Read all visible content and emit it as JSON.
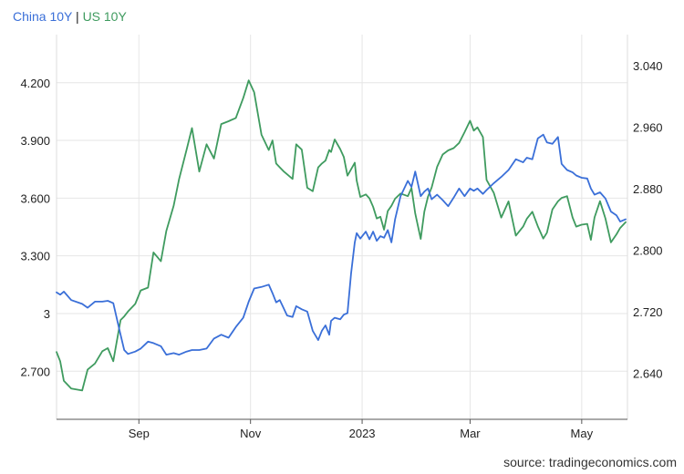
{
  "legend": {
    "china": "China 10Y",
    "sep": "|",
    "us": "US 10Y"
  },
  "source": "source: tradingeconomics.com",
  "colors": {
    "china": "#3a6fd8",
    "us": "#3f9b5f",
    "grid": "#e6e6e6",
    "axis": "#555555"
  },
  "chart_data": {
    "type": "line",
    "title": "",
    "xlabel": "",
    "ylabel": "",
    "grid": true,
    "legend_position": "top-left",
    "x_ticks": [
      "Sep",
      "Nov",
      "2023",
      "Mar",
      "May"
    ],
    "x_tick_dates": [
      "2022-09-01",
      "2022-11-01",
      "2023-01-01",
      "2023-03-01",
      "2023-05-01"
    ],
    "x_range": [
      "2022-07-18",
      "2023-05-26"
    ],
    "y_left": {
      "range": [
        2.45,
        4.45
      ],
      "ticks": [
        "2.700",
        "3",
        "3.300",
        "3.600",
        "3.900",
        "4.200"
      ],
      "tick_values": [
        2.7,
        3.0,
        3.3,
        3.6,
        3.9,
        4.2
      ]
    },
    "y_right": {
      "range": [
        2.58,
        3.08
      ],
      "ticks": [
        "2.640",
        "2.720",
        "2.800",
        "2.880",
        "2.960",
        "3.040"
      ],
      "tick_values": [
        2.64,
        2.72,
        2.8,
        2.88,
        2.96,
        3.04
      ]
    },
    "series": [
      {
        "name": "China 10Y",
        "axis": "right",
        "values": [
          [
            "2022-07-18",
            2.745
          ],
          [
            "2022-07-20",
            2.742
          ],
          [
            "2022-07-22",
            2.746
          ],
          [
            "2022-07-26",
            2.735
          ],
          [
            "2022-08-01",
            2.73
          ],
          [
            "2022-08-04",
            2.725
          ],
          [
            "2022-08-08",
            2.733
          ],
          [
            "2022-08-12",
            2.733
          ],
          [
            "2022-08-15",
            2.734
          ],
          [
            "2022-08-18",
            2.731
          ],
          [
            "2022-08-22",
            2.69
          ],
          [
            "2022-08-24",
            2.67
          ],
          [
            "2022-08-26",
            2.665
          ],
          [
            "2022-08-30",
            2.668
          ],
          [
            "2022-09-02",
            2.672
          ],
          [
            "2022-09-06",
            2.681
          ],
          [
            "2022-09-09",
            2.679
          ],
          [
            "2022-09-13",
            2.675
          ],
          [
            "2022-09-16",
            2.664
          ],
          [
            "2022-09-20",
            2.666
          ],
          [
            "2022-09-23",
            2.664
          ],
          [
            "2022-09-27",
            2.668
          ],
          [
            "2022-09-30",
            2.67
          ],
          [
            "2022-10-04",
            2.67
          ],
          [
            "2022-10-08",
            2.672
          ],
          [
            "2022-10-12",
            2.685
          ],
          [
            "2022-10-16",
            2.69
          ],
          [
            "2022-10-20",
            2.686
          ],
          [
            "2022-10-24",
            2.7
          ],
          [
            "2022-10-28",
            2.712
          ],
          [
            "2022-10-31",
            2.733
          ],
          [
            "2022-11-03",
            2.75
          ],
          [
            "2022-11-07",
            2.752
          ],
          [
            "2022-11-11",
            2.755
          ],
          [
            "2022-11-13",
            2.744
          ],
          [
            "2022-11-15",
            2.732
          ],
          [
            "2022-11-17",
            2.735
          ],
          [
            "2022-11-19",
            2.725
          ],
          [
            "2022-11-21",
            2.715
          ],
          [
            "2022-11-24",
            2.713
          ],
          [
            "2022-11-26",
            2.727
          ],
          [
            "2022-11-29",
            2.723
          ],
          [
            "2022-12-02",
            2.72
          ],
          [
            "2022-12-05",
            2.695
          ],
          [
            "2022-12-08",
            2.683
          ],
          [
            "2022-12-10",
            2.695
          ],
          [
            "2022-12-12",
            2.702
          ],
          [
            "2022-12-14",
            2.69
          ],
          [
            "2022-12-15",
            2.708
          ],
          [
            "2022-12-17",
            2.712
          ],
          [
            "2022-12-20",
            2.71
          ],
          [
            "2022-12-22",
            2.716
          ],
          [
            "2022-12-24",
            2.718
          ],
          [
            "2022-12-26",
            2.77
          ],
          [
            "2022-12-28",
            2.81
          ],
          [
            "2022-12-29",
            2.822
          ],
          [
            "2022-12-31",
            2.815
          ],
          [
            "2023-01-03",
            2.824
          ],
          [
            "2023-01-05",
            2.814
          ],
          [
            "2023-01-07",
            2.824
          ],
          [
            "2023-01-09",
            2.812
          ],
          [
            "2023-01-11",
            2.818
          ],
          [
            "2023-01-13",
            2.816
          ],
          [
            "2023-01-15",
            2.826
          ],
          [
            "2023-01-17",
            2.81
          ],
          [
            "2023-01-19",
            2.84
          ],
          [
            "2023-01-22",
            2.87
          ],
          [
            "2023-01-26",
            2.89
          ],
          [
            "2023-01-28",
            2.882
          ],
          [
            "2023-01-30",
            2.902
          ],
          [
            "2023-02-02",
            2.87
          ],
          [
            "2023-02-04",
            2.876
          ],
          [
            "2023-02-06",
            2.88
          ],
          [
            "2023-02-08",
            2.866
          ],
          [
            "2023-02-11",
            2.872
          ],
          [
            "2023-02-14",
            2.865
          ],
          [
            "2023-02-17",
            2.857
          ],
          [
            "2023-02-20",
            2.868
          ],
          [
            "2023-02-23",
            2.88
          ],
          [
            "2023-02-26",
            2.87
          ],
          [
            "2023-03-01",
            2.88
          ],
          [
            "2023-03-03",
            2.877
          ],
          [
            "2023-03-05",
            2.88
          ],
          [
            "2023-03-08",
            2.873
          ],
          [
            "2023-03-10",
            2.878
          ],
          [
            "2023-03-14",
            2.887
          ],
          [
            "2023-03-18",
            2.895
          ],
          [
            "2023-03-22",
            2.904
          ],
          [
            "2023-03-26",
            2.918
          ],
          [
            "2023-03-30",
            2.914
          ],
          [
            "2023-04-01",
            2.92
          ],
          [
            "2023-04-04",
            2.918
          ],
          [
            "2023-04-07",
            2.945
          ],
          [
            "2023-04-10",
            2.95
          ],
          [
            "2023-04-12",
            2.94
          ],
          [
            "2023-04-15",
            2.938
          ],
          [
            "2023-04-18",
            2.947
          ],
          [
            "2023-04-20",
            2.912
          ],
          [
            "2023-04-23",
            2.904
          ],
          [
            "2023-04-26",
            2.901
          ],
          [
            "2023-04-28",
            2.897
          ],
          [
            "2023-05-01",
            2.894
          ],
          [
            "2023-05-04",
            2.893
          ],
          [
            "2023-05-06",
            2.88
          ],
          [
            "2023-05-08",
            2.872
          ],
          [
            "2023-05-11",
            2.875
          ],
          [
            "2023-05-14",
            2.867
          ],
          [
            "2023-05-17",
            2.85
          ],
          [
            "2023-05-20",
            2.845
          ],
          [
            "2023-05-22",
            2.837
          ],
          [
            "2023-05-25",
            2.84
          ]
        ]
      },
      {
        "name": "US 10Y",
        "axis": "left",
        "values": [
          [
            "2022-07-18",
            2.8
          ],
          [
            "2022-07-20",
            2.752
          ],
          [
            "2022-07-22",
            2.65
          ],
          [
            "2022-07-26",
            2.61
          ],
          [
            "2022-08-01",
            2.6
          ],
          [
            "2022-08-04",
            2.709
          ],
          [
            "2022-08-08",
            2.74
          ],
          [
            "2022-08-12",
            2.804
          ],
          [
            "2022-08-15",
            2.82
          ],
          [
            "2022-08-18",
            2.752
          ],
          [
            "2022-08-22",
            2.966
          ],
          [
            "2022-08-24",
            2.985
          ],
          [
            "2022-08-26",
            3.01
          ],
          [
            "2022-08-30",
            3.05
          ],
          [
            "2022-09-02",
            3.12
          ],
          [
            "2022-09-06",
            3.135
          ],
          [
            "2022-09-09",
            3.318
          ],
          [
            "2022-09-13",
            3.272
          ],
          [
            "2022-09-16",
            3.43
          ],
          [
            "2022-09-20",
            3.56
          ],
          [
            "2022-09-23",
            3.7
          ],
          [
            "2022-09-27",
            3.85
          ],
          [
            "2022-09-30",
            3.964
          ],
          [
            "2022-10-04",
            3.738
          ],
          [
            "2022-10-08",
            3.88
          ],
          [
            "2022-10-12",
            3.806
          ],
          [
            "2022-10-16",
            3.985
          ],
          [
            "2022-10-20",
            4.0
          ],
          [
            "2022-10-24",
            4.017
          ],
          [
            "2022-10-28",
            4.12
          ],
          [
            "2022-10-31",
            4.212
          ],
          [
            "2022-11-03",
            4.15
          ],
          [
            "2022-11-07",
            3.93
          ],
          [
            "2022-11-11",
            3.85
          ],
          [
            "2022-11-13",
            3.9
          ],
          [
            "2022-11-15",
            3.78
          ],
          [
            "2022-11-17",
            3.76
          ],
          [
            "2022-11-19",
            3.74
          ],
          [
            "2022-11-21",
            3.724
          ],
          [
            "2022-11-24",
            3.7
          ],
          [
            "2022-11-26",
            3.88
          ],
          [
            "2022-11-29",
            3.852
          ],
          [
            "2022-12-02",
            3.654
          ],
          [
            "2022-12-05",
            3.636
          ],
          [
            "2022-12-08",
            3.76
          ],
          [
            "2022-12-10",
            3.78
          ],
          [
            "2022-12-12",
            3.795
          ],
          [
            "2022-12-14",
            3.85
          ],
          [
            "2022-12-15",
            3.84
          ],
          [
            "2022-12-17",
            3.905
          ],
          [
            "2022-12-20",
            3.855
          ],
          [
            "2022-12-22",
            3.814
          ],
          [
            "2022-12-24",
            3.717
          ],
          [
            "2022-12-26",
            3.75
          ],
          [
            "2022-12-28",
            3.784
          ],
          [
            "2022-12-29",
            3.691
          ],
          [
            "2022-12-31",
            3.606
          ],
          [
            "2023-01-03",
            3.619
          ],
          [
            "2023-01-05",
            3.599
          ],
          [
            "2023-01-07",
            3.555
          ],
          [
            "2023-01-09",
            3.494
          ],
          [
            "2023-01-11",
            3.503
          ],
          [
            "2023-01-13",
            3.436
          ],
          [
            "2023-01-15",
            3.533
          ],
          [
            "2023-01-17",
            3.56
          ],
          [
            "2023-01-19",
            3.597
          ],
          [
            "2023-01-22",
            3.624
          ],
          [
            "2023-01-26",
            3.61
          ],
          [
            "2023-01-28",
            3.653
          ],
          [
            "2023-01-30",
            3.52
          ],
          [
            "2023-02-02",
            3.388
          ],
          [
            "2023-02-04",
            3.53
          ],
          [
            "2023-02-06",
            3.608
          ],
          [
            "2023-02-08",
            3.655
          ],
          [
            "2023-02-11",
            3.763
          ],
          [
            "2023-02-14",
            3.827
          ],
          [
            "2023-02-17",
            3.848
          ],
          [
            "2023-02-20",
            3.86
          ],
          [
            "2023-02-23",
            3.887
          ],
          [
            "2023-02-26",
            3.943
          ],
          [
            "2023-03-01",
            4.002
          ],
          [
            "2023-03-03",
            3.951
          ],
          [
            "2023-03-05",
            3.968
          ],
          [
            "2023-03-08",
            3.918
          ],
          [
            "2023-03-10",
            3.695
          ],
          [
            "2023-03-14",
            3.627
          ],
          [
            "2023-03-18",
            3.499
          ],
          [
            "2023-03-22",
            3.583
          ],
          [
            "2023-03-26",
            3.405
          ],
          [
            "2023-03-30",
            3.452
          ],
          [
            "2023-04-01",
            3.492
          ],
          [
            "2023-04-04",
            3.529
          ],
          [
            "2023-04-07",
            3.454
          ],
          [
            "2023-04-10",
            3.39
          ],
          [
            "2023-04-12",
            3.42
          ],
          [
            "2023-04-15",
            3.541
          ],
          [
            "2023-04-18",
            3.583
          ],
          [
            "2023-04-20",
            3.601
          ],
          [
            "2023-04-23",
            3.61
          ],
          [
            "2023-04-26",
            3.5
          ],
          [
            "2023-04-28",
            3.452
          ],
          [
            "2023-05-01",
            3.462
          ],
          [
            "2023-05-04",
            3.466
          ],
          [
            "2023-05-06",
            3.383
          ],
          [
            "2023-05-08",
            3.5
          ],
          [
            "2023-05-11",
            3.584
          ],
          [
            "2023-05-14",
            3.493
          ],
          [
            "2023-05-17",
            3.37
          ],
          [
            "2023-05-20",
            3.412
          ],
          [
            "2023-05-22",
            3.445
          ],
          [
            "2023-05-25",
            3.475
          ]
        ]
      }
    ]
  }
}
